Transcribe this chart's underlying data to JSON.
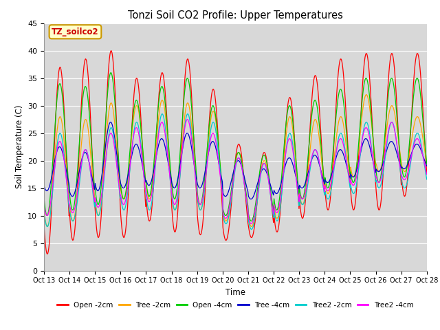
{
  "title": "Tonzi Soil CO2 Profile: Upper Temperatures",
  "ylabel": "Soil Temperature (C)",
  "xlabel": "Time",
  "annotation": "TZ_soilco2",
  "ylim": [
    0,
    45
  ],
  "plot_bg": "#d8d8d8",
  "x_tick_labels": [
    "Oct 13",
    "Oct 14",
    "Oct 15",
    "Oct 16",
    "Oct 17",
    "Oct 18",
    "Oct 19",
    "Oct 20",
    "Oct 21",
    "Oct 22",
    "Oct 23",
    "Oct 24",
    "Oct 25",
    "Oct 26",
    "Oct 27",
    "Oct 28"
  ],
  "series": [
    {
      "label": "Open -2cm",
      "color": "#ff0000"
    },
    {
      "label": "Tree -2cm",
      "color": "#ffa500"
    },
    {
      "label": "Open -4cm",
      "color": "#00cc00"
    },
    {
      "label": "Tree -4cm",
      "color": "#0000cc"
    },
    {
      "label": "Tree2 -2cm",
      "color": "#00cccc"
    },
    {
      "label": "Tree2 -4cm",
      "color": "#ff00ff"
    }
  ]
}
